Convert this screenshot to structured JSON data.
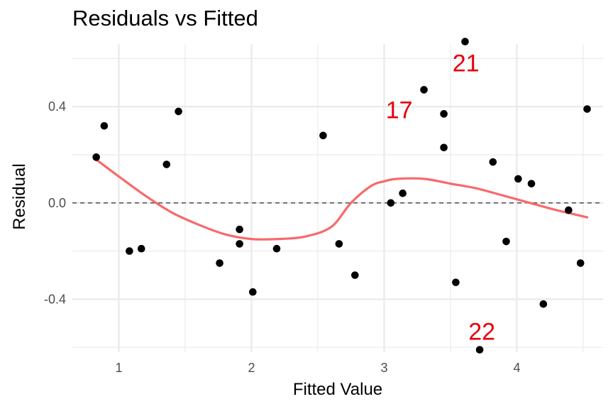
{
  "chart_data": {
    "type": "scatter",
    "title": "Residuals vs Fitted",
    "xlabel": "Fitted Value",
    "ylabel": "Residual",
    "xlim": [
      0.65,
      4.65
    ],
    "ylim": [
      -0.62,
      0.66
    ],
    "x_ticks": [
      1,
      2,
      3,
      4
    ],
    "y_ticks": [
      -0.4,
      0.0,
      0.4
    ],
    "y_tick_labels": [
      "-0.4",
      "0.0",
      "0.4"
    ],
    "grid": true,
    "reference_line": {
      "y": 0,
      "style": "dashed"
    },
    "colors": {
      "points": "#000000",
      "smooth": "#f8696b",
      "labels": "#e8000b",
      "grid": "#ebebeb"
    },
    "points": [
      {
        "x": 0.83,
        "y": 0.19
      },
      {
        "x": 0.89,
        "y": 0.32
      },
      {
        "x": 1.08,
        "y": -0.2
      },
      {
        "x": 1.17,
        "y": -0.19
      },
      {
        "x": 1.36,
        "y": 0.16
      },
      {
        "x": 1.45,
        "y": 0.38
      },
      {
        "x": 1.76,
        "y": -0.25
      },
      {
        "x": 1.91,
        "y": -0.11
      },
      {
        "x": 1.91,
        "y": -0.17
      },
      {
        "x": 2.01,
        "y": -0.37
      },
      {
        "x": 2.19,
        "y": -0.19
      },
      {
        "x": 2.54,
        "y": 0.28
      },
      {
        "x": 2.66,
        "y": -0.17
      },
      {
        "x": 2.78,
        "y": -0.3
      },
      {
        "x": 3.05,
        "y": 0.0
      },
      {
        "x": 3.14,
        "y": 0.04
      },
      {
        "x": 3.3,
        "y": 0.47
      },
      {
        "x": 3.45,
        "y": 0.37
      },
      {
        "x": 3.45,
        "y": 0.23
      },
      {
        "x": 3.54,
        "y": -0.33
      },
      {
        "x": 3.61,
        "y": 0.67
      },
      {
        "x": 3.72,
        "y": -0.61
      },
      {
        "x": 3.82,
        "y": 0.17
      },
      {
        "x": 3.92,
        "y": -0.16
      },
      {
        "x": 4.01,
        "y": 0.1
      },
      {
        "x": 4.11,
        "y": 0.08
      },
      {
        "x": 4.2,
        "y": -0.42
      },
      {
        "x": 4.39,
        "y": -0.03
      },
      {
        "x": 4.48,
        "y": -0.25
      },
      {
        "x": 4.53,
        "y": 0.39
      }
    ],
    "smooth": {
      "x": [
        0.83,
        1.0,
        1.2,
        1.4,
        1.6,
        1.8,
        2.0,
        2.2,
        2.4,
        2.6,
        2.75,
        2.9,
        3.0,
        3.1,
        3.3,
        3.5,
        3.7,
        3.9,
        4.1,
        4.3,
        4.53
      ],
      "y": [
        0.18,
        0.11,
        0.03,
        -0.04,
        -0.09,
        -0.13,
        -0.15,
        -0.15,
        -0.14,
        -0.1,
        0.0,
        0.07,
        0.09,
        0.1,
        0.1,
        0.08,
        0.06,
        0.03,
        0.0,
        -0.03,
        -0.06
      ]
    },
    "annotations": [
      {
        "text": "21",
        "x": 3.61,
        "y": 0.67
      },
      {
        "text": "17",
        "x": 3.3,
        "y": 0.47
      },
      {
        "text": "22",
        "x": 3.72,
        "y": -0.61
      }
    ]
  }
}
